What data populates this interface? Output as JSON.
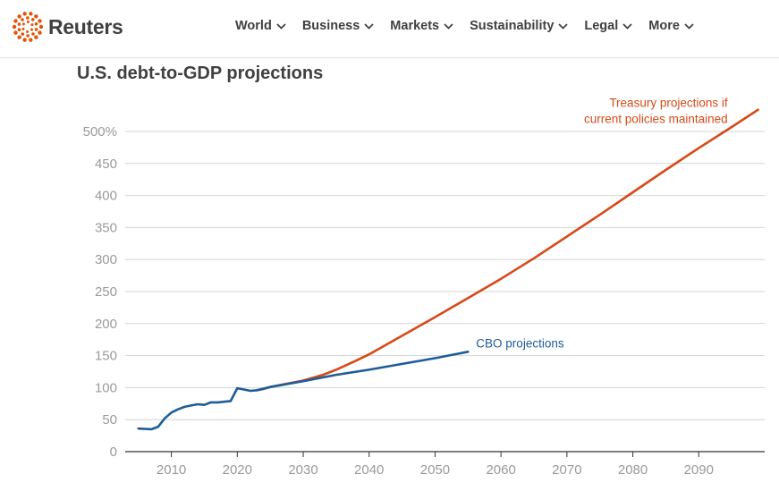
{
  "site": {
    "logo_text": "Reuters",
    "logo_icon": "reuters-dots-logo",
    "brand_color": "#e35205"
  },
  "nav": {
    "items": [
      {
        "label": "World",
        "icon": "chevron-down-icon"
      },
      {
        "label": "Business",
        "icon": "chevron-down-icon"
      },
      {
        "label": "Markets",
        "icon": "chevron-down-icon"
      },
      {
        "label": "Sustainability",
        "icon": "chevron-down-icon"
      },
      {
        "label": "Legal",
        "icon": "chevron-down-icon"
      },
      {
        "label": "More",
        "icon": "chevron-down-icon"
      }
    ]
  },
  "chart_data": {
    "type": "line",
    "title": "U.S. debt-to-GDP projections",
    "xlabel": "",
    "ylabel": "",
    "xlim": [
      2003,
      2100
    ],
    "ylim": [
      0,
      500
    ],
    "x_ticks": [
      2010,
      2020,
      2030,
      2040,
      2050,
      2060,
      2070,
      2080,
      2090
    ],
    "y_ticks": [
      0,
      50,
      100,
      150,
      200,
      250,
      300,
      350,
      400,
      450,
      500
    ],
    "y_tick_labels": [
      "0",
      "50",
      "100",
      "150",
      "200",
      "250",
      "300",
      "350",
      "400",
      "450",
      "500%"
    ],
    "grid": true,
    "colors": {
      "treasury": "#d64a17",
      "cbo": "#1d5d98",
      "grid": "#d4d4d4",
      "axis": "#333333"
    },
    "series": [
      {
        "name": "Treasury projections if current policies maintained",
        "label_lines": [
          "Treasury projections if",
          "current policies maintained"
        ],
        "color": "#d64a17",
        "points": [
          [
            2023,
            96
          ],
          [
            2025,
            101
          ],
          [
            2028,
            107
          ],
          [
            2030,
            111
          ],
          [
            2033,
            120
          ],
          [
            2035,
            128
          ],
          [
            2038,
            142
          ],
          [
            2040,
            152
          ],
          [
            2045,
            181
          ],
          [
            2050,
            210
          ],
          [
            2055,
            240
          ],
          [
            2060,
            270
          ],
          [
            2065,
            302
          ],
          [
            2070,
            336
          ],
          [
            2075,
            370
          ],
          [
            2080,
            405
          ],
          [
            2085,
            440
          ],
          [
            2090,
            474
          ],
          [
            2095,
            507
          ],
          [
            2099,
            534
          ]
        ]
      },
      {
        "name": "CBO projections",
        "label_lines": [
          "CBO projections"
        ],
        "color": "#1d5d98",
        "points": [
          [
            2005,
            36
          ],
          [
            2007,
            35
          ],
          [
            2008,
            39
          ],
          [
            2009,
            52
          ],
          [
            2010,
            61
          ],
          [
            2011,
            66
          ],
          [
            2012,
            70
          ],
          [
            2013,
            72
          ],
          [
            2014,
            74
          ],
          [
            2015,
            73
          ],
          [
            2016,
            77
          ],
          [
            2017,
            77
          ],
          [
            2018,
            78
          ],
          [
            2019,
            79
          ],
          [
            2020,
            99
          ],
          [
            2021,
            97
          ],
          [
            2022,
            95
          ],
          [
            2023,
            96
          ],
          [
            2024,
            98
          ],
          [
            2025,
            101
          ],
          [
            2030,
            110
          ],
          [
            2035,
            120
          ],
          [
            2040,
            128
          ],
          [
            2045,
            137
          ],
          [
            2050,
            146
          ],
          [
            2055,
            156
          ]
        ]
      }
    ]
  }
}
